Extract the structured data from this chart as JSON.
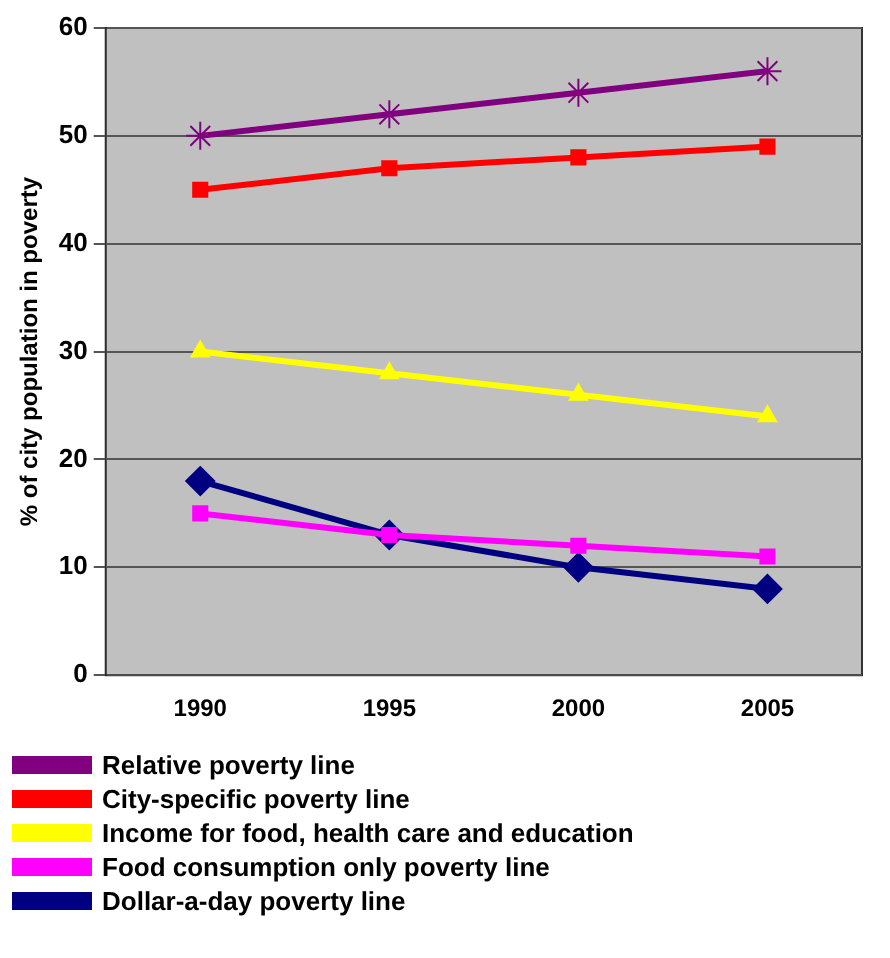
{
  "chart_data": {
    "type": "line",
    "ylabel": "% of city population in poverty",
    "categories": [
      "1990",
      "1995",
      "2000",
      "2005"
    ],
    "ylim": [
      0,
      60
    ],
    "yticks": [
      0,
      10,
      20,
      30,
      40,
      50,
      60
    ],
    "grid": "y",
    "legend": "bottom",
    "series": [
      {
        "name": "Relative poverty line",
        "color": "#800080",
        "marker": "cross",
        "values": [
          50,
          52,
          54,
          56
        ]
      },
      {
        "name": "City-specific poverty line",
        "color": "#ff0000",
        "marker": "square",
        "values": [
          45,
          47,
          48,
          49
        ]
      },
      {
        "name": "Income for food, health care and education",
        "color": "#ffff00",
        "marker": "triangle",
        "values": [
          30,
          28,
          26,
          24
        ]
      },
      {
        "name": "Food consumption only poverty line",
        "color": "#ff00ff",
        "marker": "square",
        "values": [
          15,
          13,
          12,
          11
        ]
      },
      {
        "name": "Dollar-a-day poverty line",
        "color": "#000080",
        "marker": "diamond",
        "values": [
          18,
          13,
          10,
          8
        ]
      }
    ]
  }
}
